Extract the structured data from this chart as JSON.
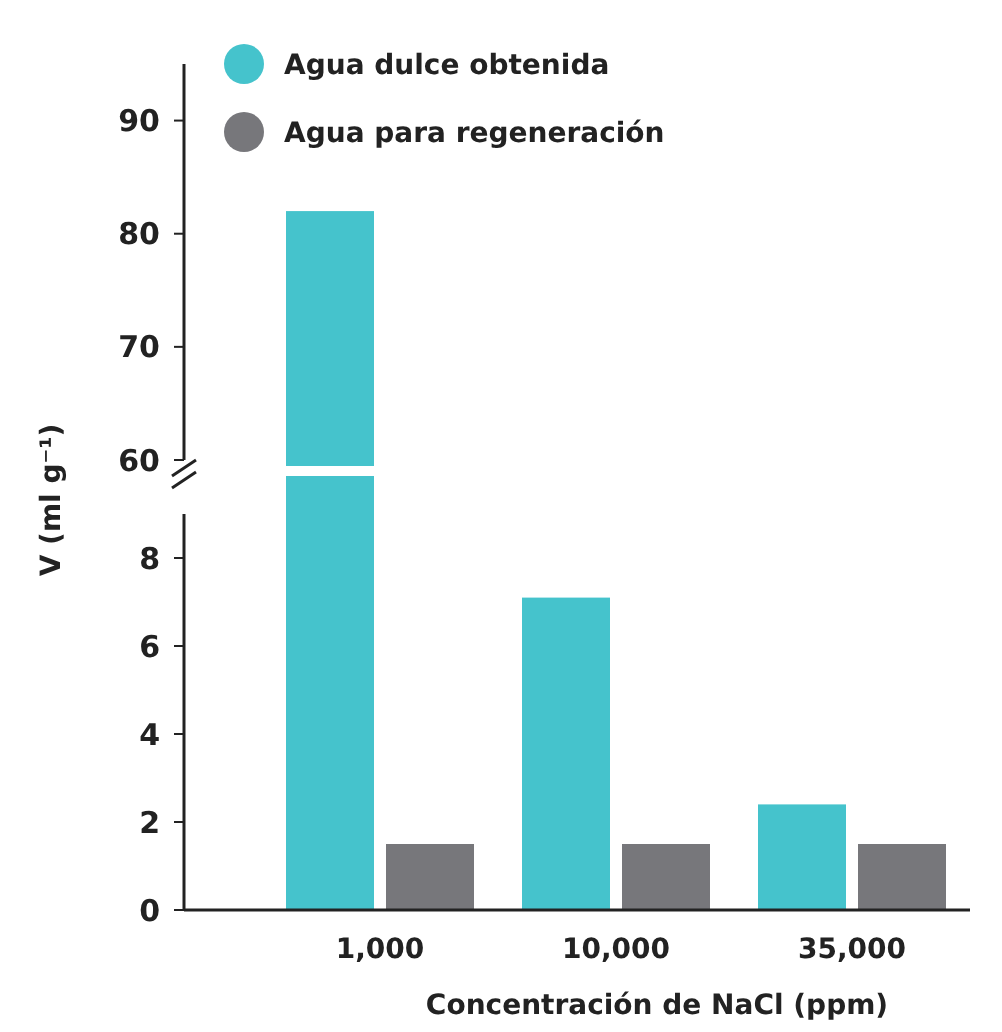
{
  "chart_data": [
    {
      "type": "bar",
      "ylabel": "V (ml g⁻¹)",
      "categories": [
        null
      ],
      "series": [
        {
          "color": "#45c3cc",
          "values": [
            82
          ]
        }
      ],
      "ylim": [
        60,
        95
      ],
      "yticks": [
        60,
        70,
        80,
        90
      ],
      "tick_labels": "y"
    },
    {
      "type": "bar",
      "xlabel": "Concentración de NaCl (ppm)",
      "categories": [
        "1,000",
        "10,000",
        "35,000"
      ],
      "series": [
        {
          "name": "Agua dulce obtenida",
          "color": "#45c3cc",
          "values": [
            null,
            7.1,
            2.4
          ]
        },
        {
          "name": "Agua para regeneración",
          "color": "#77777b",
          "values": [
            1.5,
            1.5,
            1.5
          ]
        }
      ],
      "ylim": [
        0,
        9
      ],
      "yticks": [
        0,
        2,
        4,
        6,
        8
      ],
      "legend": "top left"
    }
  ]
}
